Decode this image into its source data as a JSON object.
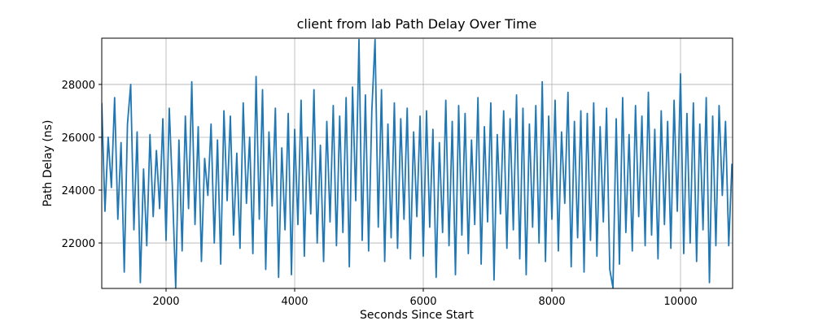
{
  "chart_data": {
    "type": "line",
    "title": "client from lab Path Delay Over Time",
    "x_label": "Seconds Since Start",
    "y_label": "Path Delay (ns)",
    "color": "#1f77b4",
    "grid": true,
    "xlim": [
      1000,
      10810
    ],
    "ylim": [
      20280,
      29750
    ],
    "xticks": [
      2000,
      4000,
      6000,
      8000,
      10000
    ],
    "yticks": [
      22000,
      24000,
      26000,
      28000
    ],
    "x": [
      1000,
      1050,
      1100,
      1150,
      1200,
      1250,
      1300,
      1350,
      1400,
      1450,
      1500,
      1550,
      1600,
      1650,
      1700,
      1750,
      1800,
      1850,
      1900,
      1950,
      2000,
      2050,
      2100,
      2150,
      2200,
      2250,
      2300,
      2350,
      2400,
      2450,
      2500,
      2550,
      2600,
      2650,
      2700,
      2750,
      2800,
      2850,
      2900,
      2950,
      3000,
      3050,
      3100,
      3150,
      3200,
      3250,
      3300,
      3350,
      3400,
      3450,
      3500,
      3550,
      3600,
      3650,
      3700,
      3750,
      3800,
      3850,
      3900,
      3950,
      4000,
      4050,
      4100,
      4150,
      4200,
      4250,
      4300,
      4350,
      4400,
      4450,
      4500,
      4550,
      4600,
      4650,
      4700,
      4750,
      4800,
      4850,
      4900,
      4950,
      5000,
      5050,
      5100,
      5150,
      5200,
      5250,
      5300,
      5350,
      5400,
      5450,
      5500,
      5550,
      5600,
      5650,
      5700,
      5750,
      5800,
      5850,
      5900,
      5950,
      6000,
      6050,
      6100,
      6150,
      6200,
      6250,
      6300,
      6350,
      6400,
      6450,
      6500,
      6550,
      6600,
      6650,
      6700,
      6750,
      6800,
      6850,
      6900,
      6950,
      7000,
      7050,
      7100,
      7150,
      7200,
      7250,
      7300,
      7350,
      7400,
      7450,
      7500,
      7550,
      7600,
      7650,
      7700,
      7750,
      7800,
      7850,
      7900,
      7950,
      8000,
      8050,
      8100,
      8150,
      8200,
      8250,
      8300,
      8350,
      8400,
      8450,
      8500,
      8550,
      8600,
      8650,
      8700,
      8750,
      8800,
      8850,
      8900,
      8950,
      9000,
      9050,
      9100,
      9150,
      9200,
      9250,
      9300,
      9350,
      9400,
      9450,
      9500,
      9550,
      9600,
      9650,
      9700,
      9750,
      9800,
      9850,
      9900,
      9950,
      10000,
      10050,
      10100,
      10150,
      10200,
      10250,
      10300,
      10350,
      10400,
      10450,
      10500,
      10550,
      10600,
      10650,
      10700,
      10750,
      10800
    ],
    "values": [
      27300,
      23200,
      26000,
      24100,
      27500,
      22900,
      25800,
      20900,
      26500,
      28000,
      22500,
      26200,
      20500,
      24800,
      21900,
      26100,
      23000,
      25500,
      23300,
      26700,
      22100,
      27100,
      24000,
      20300,
      25900,
      21700,
      26800,
      23300,
      28100,
      22700,
      26400,
      21300,
      25200,
      23800,
      26500,
      22000,
      25900,
      21200,
      27000,
      23600,
      26800,
      22300,
      25400,
      21800,
      27300,
      23500,
      26000,
      21600,
      28300,
      22900,
      27800,
      21000,
      26200,
      23400,
      27100,
      20700,
      25600,
      22500,
      26900,
      20800,
      26300,
      22700,
      27400,
      21500,
      26000,
      23100,
      27800,
      22000,
      25700,
      21300,
      26600,
      22800,
      27200,
      21900,
      26800,
      22400,
      27500,
      21100,
      27900,
      23600,
      29700,
      22100,
      27600,
      21700,
      27000,
      29700,
      22600,
      27800,
      21300,
      26500,
      22200,
      27300,
      21800,
      26700,
      22900,
      27100,
      21400,
      26200,
      23000,
      26800,
      21500,
      27000,
      22600,
      26300,
      20700,
      25800,
      22400,
      27400,
      21900,
      26600,
      20800,
      27200,
      22300,
      26900,
      21600,
      25900,
      22700,
      27500,
      21200,
      26400,
      22800,
      27300,
      20600,
      26100,
      23100,
      27000,
      21800,
      26700,
      22500,
      27600,
      21400,
      27100,
      20800,
      26500,
      22600,
      27200,
      22000,
      28100,
      21300,
      26800,
      22900,
      27400,
      21700,
      26200,
      23500,
      27700,
      21100,
      26600,
      22200,
      27000,
      20900,
      26900,
      22100,
      27300,
      21500,
      26400,
      22800,
      27100,
      21000,
      20300,
      26700,
      21200,
      27500,
      22400,
      26100,
      21700,
      27200,
      23000,
      26800,
      21900,
      27700,
      22300,
      26300,
      21400,
      27000,
      22700,
      26600,
      21800,
      27400,
      23200,
      28400,
      21600,
      26900,
      22000,
      27300,
      21300,
      26500,
      22500,
      27500,
      20500,
      26800,
      21900,
      27200,
      23800,
      26600,
      21900,
      25000
    ]
  }
}
